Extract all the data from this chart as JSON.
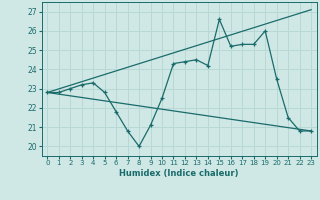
{
  "x": [
    0,
    1,
    2,
    3,
    4,
    5,
    6,
    7,
    8,
    9,
    10,
    11,
    12,
    13,
    14,
    15,
    16,
    17,
    18,
    19,
    20,
    21,
    22,
    23
  ],
  "y_main": [
    22.8,
    22.8,
    23.0,
    23.2,
    23.3,
    22.8,
    21.8,
    20.8,
    20.0,
    21.1,
    22.5,
    24.3,
    24.4,
    24.5,
    24.2,
    26.6,
    25.2,
    25.3,
    25.3,
    26.0,
    23.5,
    21.5,
    20.8,
    20.8
  ],
  "line1_x": [
    0,
    23
  ],
  "line1_y": [
    22.8,
    27.1
  ],
  "line2_x": [
    0,
    23
  ],
  "line2_y": [
    22.8,
    20.8
  ],
  "xlabel": "Humidex (Indice chaleur)",
  "ylabel_ticks": [
    20,
    21,
    22,
    23,
    24,
    25,
    26,
    27
  ],
  "xlim": [
    -0.5,
    23.5
  ],
  "ylim": [
    19.5,
    27.5
  ],
  "bg_color": "#cfe8e5",
  "line_color": "#1a6b6b",
  "grid_color": "#b8d8d5"
}
